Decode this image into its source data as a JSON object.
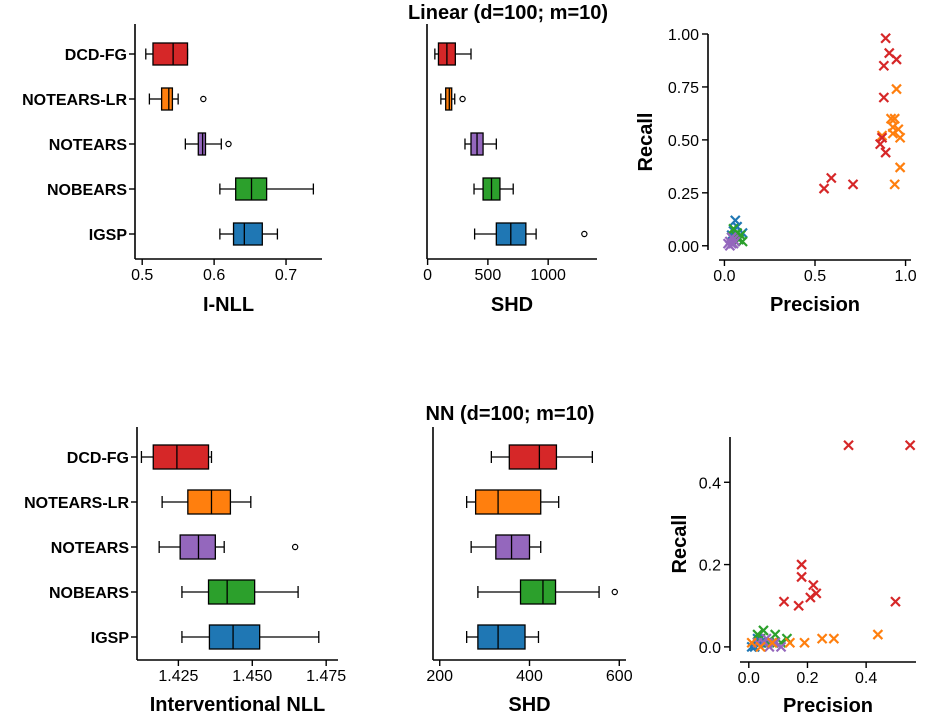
{
  "colors": {
    "DCD-FG": "#d62728",
    "NOTEARS-LR": "#ff7f0e",
    "NOTEARS": "#9467bd",
    "NOBEARS": "#2ca02c",
    "IGSP": "#1f77b4"
  },
  "methods": [
    "DCD-FG",
    "NOTEARS-LR",
    "NOTEARS",
    "NOBEARS",
    "IGSP"
  ],
  "chart_data": [
    {
      "section": "Linear (d=100; m=10)",
      "panels": [
        {
          "type": "boxplot",
          "xlabel": "I-NLL",
          "xlim": [
            0.49,
            0.75
          ],
          "ticks": [
            0.5,
            0.6,
            0.7
          ],
          "tick_labels": [
            "0.5",
            "0.6",
            "0.7"
          ],
          "show_categories": true,
          "boxes": [
            {
              "method": "DCD-FG",
              "min": 0.505,
              "q1": 0.515,
              "median": 0.543,
              "q3": 0.563,
              "max": 0.563,
              "fliers": []
            },
            {
              "method": "NOTEARS-LR",
              "min": 0.51,
              "q1": 0.527,
              "median": 0.537,
              "q3": 0.542,
              "max": 0.55,
              "fliers": [
                0.585
              ]
            },
            {
              "method": "NOTEARS",
              "min": 0.56,
              "q1": 0.578,
              "median": 0.584,
              "q3": 0.588,
              "max": 0.61,
              "fliers": [
                0.62
              ]
            },
            {
              "method": "NOBEARS",
              "min": 0.608,
              "q1": 0.63,
              "median": 0.652,
              "q3": 0.673,
              "max": 0.738,
              "fliers": []
            },
            {
              "method": "IGSP",
              "min": 0.608,
              "q1": 0.627,
              "median": 0.642,
              "q3": 0.667,
              "max": 0.688,
              "fliers": []
            }
          ]
        },
        {
          "type": "boxplot",
          "xlabel": "SHD",
          "xlim": [
            -5,
            1405
          ],
          "ticks": [
            0,
            500,
            1000
          ],
          "tick_labels": [
            "0",
            "500",
            "1000"
          ],
          "show_categories": false,
          "boxes": [
            {
              "method": "DCD-FG",
              "min": 60,
              "q1": 90,
              "median": 160,
              "q3": 230,
              "max": 360,
              "fliers": []
            },
            {
              "method": "NOTEARS-LR",
              "min": 110,
              "q1": 150,
              "median": 180,
              "q3": 200,
              "max": 225,
              "fliers": [
                290
              ]
            },
            {
              "method": "NOTEARS",
              "min": 310,
              "q1": 360,
              "median": 410,
              "q3": 460,
              "max": 570,
              "fliers": []
            },
            {
              "method": "NOBEARS",
              "min": 385,
              "q1": 460,
              "median": 530,
              "q3": 600,
              "max": 710,
              "fliers": []
            },
            {
              "method": "IGSP",
              "min": 390,
              "q1": 570,
              "median": 690,
              "q3": 815,
              "max": 900,
              "fliers": [
                1300
              ]
            }
          ]
        },
        {
          "type": "scatter",
          "xlabel": "Precision",
          "ylabel": "Recall",
          "xlim": [
            -0.03,
            1.03
          ],
          "ylim": [
            -0.02,
            1.0
          ],
          "xticks": [
            0.0,
            0.5,
            1.0
          ],
          "xtick_labels": [
            "0.0",
            "0.5",
            "1.0"
          ],
          "yticks": [
            0.0,
            0.25,
            0.5,
            0.75,
            1.0
          ],
          "ytick_labels": [
            "0.00",
            "0.25",
            "0.50",
            "0.75",
            "1.00"
          ],
          "marker": "x",
          "series": [
            {
              "name": "DCD-FG",
              "points": [
                [
                  0.89,
                  0.98
                ],
                [
                  0.91,
                  0.91
                ],
                [
                  0.95,
                  0.88
                ],
                [
                  0.88,
                  0.85
                ],
                [
                  0.88,
                  0.7
                ],
                [
                  0.89,
                  0.44
                ],
                [
                  0.86,
                  0.48
                ],
                [
                  0.87,
                  0.51
                ],
                [
                  0.55,
                  0.27
                ],
                [
                  0.59,
                  0.32
                ],
                [
                  0.71,
                  0.29
                ]
              ]
            },
            {
              "name": "NOTEARS-LR",
              "points": [
                [
                  0.95,
                  0.74
                ],
                [
                  0.92,
                  0.6
                ],
                [
                  0.94,
                  0.6
                ],
                [
                  0.93,
                  0.56
                ],
                [
                  0.96,
                  0.55
                ],
                [
                  0.93,
                  0.53
                ],
                [
                  0.87,
                  0.52
                ],
                [
                  0.97,
                  0.51
                ],
                [
                  0.97,
                  0.37
                ],
                [
                  0.94,
                  0.29
                ]
              ]
            },
            {
              "name": "NOTEARS",
              "points": [
                [
                  0.02,
                  0.01
                ],
                [
                  0.03,
                  0.02
                ],
                [
                  0.04,
                  0.01
                ],
                [
                  0.05,
                  0.03
                ],
                [
                  0.03,
                  0.0
                ],
                [
                  0.06,
                  0.02
                ],
                [
                  0.04,
                  0.04
                ],
                [
                  0.05,
                  0.01
                ]
              ]
            },
            {
              "name": "NOBEARS",
              "points": [
                [
                  0.05,
                  0.08
                ],
                [
                  0.06,
                  0.05
                ],
                [
                  0.08,
                  0.03
                ],
                [
                  0.1,
                  0.02
                ],
                [
                  0.07,
                  0.06
                ],
                [
                  0.04,
                  0.04
                ],
                [
                  0.09,
                  0.05
                ]
              ]
            },
            {
              "name": "IGSP",
              "points": [
                [
                  0.06,
                  0.12
                ],
                [
                  0.07,
                  0.09
                ],
                [
                  0.05,
                  0.07
                ],
                [
                  0.04,
                  0.05
                ],
                [
                  0.08,
                  0.03
                ],
                [
                  0.1,
                  0.06
                ]
              ]
            }
          ]
        }
      ]
    },
    {
      "section": "NN (d=100; m=10)",
      "panels": [
        {
          "type": "boxplot",
          "xlabel": "Interventional NLL",
          "xlim": [
            1.411,
            1.479
          ],
          "ticks": [
            1.425,
            1.45,
            1.475
          ],
          "tick_labels": [
            "1.425",
            "1.450",
            "1.475"
          ],
          "show_categories": true,
          "boxes": [
            {
              "method": "DCD-FG",
              "min": 1.4125,
              "q1": 1.4165,
              "median": 1.4245,
              "q3": 1.4352,
              "max": 1.4362,
              "fliers": []
            },
            {
              "method": "NOTEARS-LR",
              "min": 1.4195,
              "q1": 1.4282,
              "median": 1.4362,
              "q3": 1.4426,
              "max": 1.4495,
              "fliers": []
            },
            {
              "method": "NOTEARS",
              "min": 1.4185,
              "q1": 1.4256,
              "median": 1.4318,
              "q3": 1.4375,
              "max": 1.4405,
              "fliers": [
                1.4645
              ]
            },
            {
              "method": "NOBEARS",
              "min": 1.4262,
              "q1": 1.4352,
              "median": 1.4415,
              "q3": 1.4508,
              "max": 1.4655,
              "fliers": []
            },
            {
              "method": "IGSP",
              "min": 1.4262,
              "q1": 1.4355,
              "median": 1.4435,
              "q3": 1.4525,
              "max": 1.4725,
              "fliers": []
            }
          ]
        },
        {
          "type": "boxplot",
          "xlabel": "SHD",
          "xlim": [
            185,
            615
          ],
          "ticks": [
            200,
            400,
            600
          ],
          "tick_labels": [
            "200",
            "400",
            "600"
          ],
          "show_categories": false,
          "boxes": [
            {
              "method": "DCD-FG",
              "min": 315,
              "q1": 355,
              "median": 422,
              "q3": 460,
              "max": 540,
              "fliers": []
            },
            {
              "method": "NOTEARS-LR",
              "min": 260,
              "q1": 280,
              "median": 330,
              "q3": 425,
              "max": 465,
              "fliers": []
            },
            {
              "method": "NOTEARS",
              "min": 270,
              "q1": 325,
              "median": 360,
              "q3": 400,
              "max": 425,
              "fliers": []
            },
            {
              "method": "NOBEARS",
              "min": 285,
              "q1": 380,
              "median": 430,
              "q3": 458,
              "max": 555,
              "fliers": [
                590
              ]
            },
            {
              "method": "IGSP",
              "min": 260,
              "q1": 285,
              "median": 330,
              "q3": 390,
              "max": 420,
              "fliers": []
            }
          ]
        },
        {
          "type": "scatter",
          "xlabel": "Precision",
          "ylabel": "Recall",
          "xlim": [
            -0.03,
            0.57
          ],
          "ylim": [
            -0.01,
            0.51
          ],
          "xticks": [
            0.0,
            0.2,
            0.4
          ],
          "xtick_labels": [
            "0.0",
            "0.2",
            "0.4"
          ],
          "yticks": [
            0.0,
            0.2,
            0.4
          ],
          "ytick_labels": [
            "0.0",
            "0.2",
            "0.4"
          ],
          "marker": "x",
          "series": [
            {
              "name": "DCD-FG",
              "points": [
                [
                  0.34,
                  0.49
                ],
                [
                  0.55,
                  0.49
                ],
                [
                  0.18,
                  0.2
                ],
                [
                  0.18,
                  0.17
                ],
                [
                  0.22,
                  0.15
                ],
                [
                  0.21,
                  0.12
                ],
                [
                  0.23,
                  0.13
                ],
                [
                  0.17,
                  0.1
                ],
                [
                  0.12,
                  0.11
                ],
                [
                  0.5,
                  0.11
                ]
              ]
            },
            {
              "name": "NOTEARS-LR",
              "points": [
                [
                  0.44,
                  0.03
                ],
                [
                  0.25,
                  0.02
                ],
                [
                  0.29,
                  0.02
                ],
                [
                  0.19,
                  0.01
                ],
                [
                  0.14,
                  0.01
                ],
                [
                  0.08,
                  0.01
                ],
                [
                  0.04,
                  0.0
                ],
                [
                  0.01,
                  0.01
                ]
              ]
            },
            {
              "name": "NOTEARS",
              "points": [
                [
                  0.03,
                  0.01
                ],
                [
                  0.05,
                  0.01
                ],
                [
                  0.07,
                  0.0
                ],
                [
                  0.09,
                  0.01
                ],
                [
                  0.11,
                  0.0
                ],
                [
                  0.06,
                  0.02
                ],
                [
                  0.08,
                  0.01
                ]
              ]
            },
            {
              "name": "NOBEARS",
              "points": [
                [
                  0.05,
                  0.04
                ],
                [
                  0.09,
                  0.03
                ],
                [
                  0.13,
                  0.02
                ],
                [
                  0.04,
                  0.02
                ],
                [
                  0.07,
                  0.01
                ],
                [
                  0.03,
                  0.03
                ],
                [
                  0.11,
                  0.01
                ]
              ]
            },
            {
              "name": "IGSP",
              "points": [
                [
                  0.02,
                  0.0
                ],
                [
                  0.04,
                  0.01
                ],
                [
                  0.06,
                  0.01
                ],
                [
                  0.01,
                  0.0
                ],
                [
                  0.03,
                  0.02
                ]
              ]
            }
          ]
        }
      ]
    }
  ]
}
